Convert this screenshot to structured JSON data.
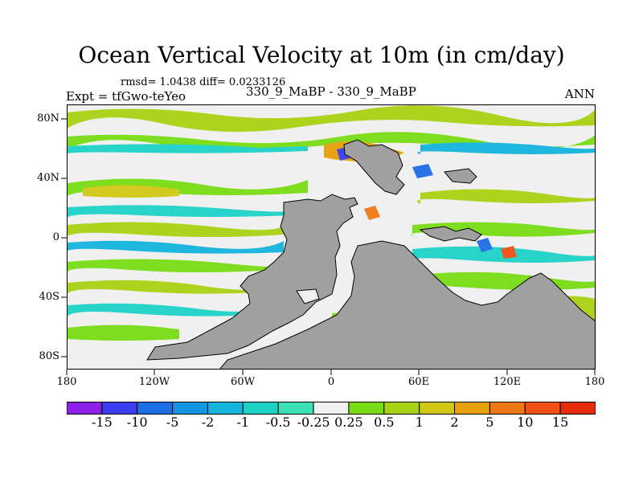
{
  "header": {
    "title": "Ocean Vertical Velocity at 10m (in cm/day)",
    "stats": "rmsd= 1.0438 diff= 0.0233126",
    "experiment": "Expt = tfGwo-teYeo",
    "subtitle": "330_9_MaBP - 330_9_MaBP",
    "season": "ANN"
  },
  "map": {
    "latitude_labels": [
      "80N",
      "40N",
      "0",
      "40S",
      "80S"
    ],
    "longitude_labels": [
      "180",
      "120W",
      "60W",
      "0",
      "60E",
      "120E",
      "180"
    ],
    "land_color": "#a0a0a0",
    "ocean_background": "#f0f0f0"
  },
  "colorbar": {
    "levels": [
      "-15",
      "-10",
      "-5",
      "-2",
      "-1",
      "-0.5",
      "-0.25",
      "0.25",
      "0.5",
      "1",
      "2",
      "5",
      "10",
      "15"
    ],
    "colors": [
      "#8c1fe8",
      "#3c3cf0",
      "#1e6ee6",
      "#1496e6",
      "#14b4dc",
      "#1ed2c8",
      "#3ce0b4",
      "#f0f0f0",
      "#78dc14",
      "#aad214",
      "#d2c814",
      "#e6a00a",
      "#f07814",
      "#f05014",
      "#e62d0a"
    ]
  }
}
